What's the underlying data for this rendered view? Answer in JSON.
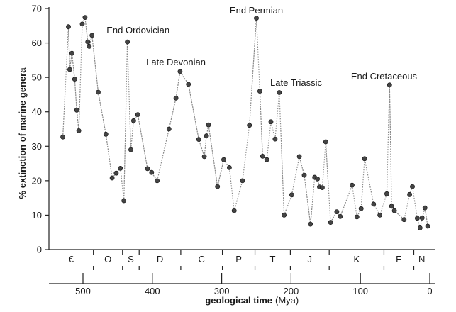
{
  "chart_data": {
    "type": "line",
    "ylabel": "% extinction of marine genera",
    "xlabel": "geological time",
    "xlabel_unit": "(Mya)",
    "ylim": [
      0,
      70
    ],
    "xlim": [
      530,
      0
    ],
    "y_ticks": [
      0,
      10,
      20,
      30,
      40,
      50,
      60,
      70
    ],
    "x_ticks": [
      500,
      400,
      300,
      200,
      100,
      0
    ],
    "grid": false,
    "series": [
      {
        "color": "#444444",
        "x": [
          529,
          521,
          519,
          516,
          512,
          509,
          506,
          501,
          497,
          493,
          491,
          487,
          478,
          467,
          458,
          452,
          446,
          441,
          436,
          431,
          427,
          421,
          407,
          401,
          393,
          376,
          366,
          360,
          348,
          333,
          325,
          322,
          319,
          306,
          297,
          289,
          282,
          270,
          260,
          250,
          245,
          241,
          235,
          229,
          223,
          217,
          210,
          199,
          188,
          181,
          172,
          166,
          162,
          159,
          155,
          150,
          143,
          134,
          129,
          112,
          105,
          99,
          94,
          81,
          72,
          62,
          58,
          55,
          51,
          37,
          29,
          25,
          18,
          14,
          11,
          7,
          3
        ],
        "y": [
          32.7,
          64.7,
          52.3,
          57.0,
          49.5,
          40.5,
          34.5,
          65.5,
          67.4,
          60.3,
          59.0,
          62.2,
          45.7,
          33.5,
          20.8,
          22.2,
          23.6,
          14.2,
          60.3,
          29.0,
          37.4,
          39.2,
          23.5,
          22.4,
          20.0,
          35.0,
          44.0,
          51.7,
          48.0,
          32.0,
          27.0,
          33.0,
          36.2,
          18.3,
          26.1,
          23.8,
          11.3,
          20.0,
          36.1,
          67.2,
          46.0,
          27.1,
          26.1,
          37.1,
          32.1,
          45.6,
          10.0,
          15.9,
          27.0,
          21.6,
          7.4,
          21.0,
          20.5,
          18.2,
          18.0,
          31.3,
          7.9,
          11.0,
          9.6,
          18.7,
          9.5,
          11.9,
          26.4,
          13.2,
          10.0,
          16.2,
          47.8,
          12.6,
          11.3,
          8.7,
          16.0,
          18.3,
          9.1,
          6.3,
          9.2,
          12.1,
          6.8
        ]
      }
    ],
    "annotations": [
      {
        "text": "End Ordovician",
        "x": 441
      },
      {
        "text": "Late Devonian",
        "x": 366
      },
      {
        "text": "End Permian",
        "x": 250
      },
      {
        "text": "Late Triassic",
        "x": 205
      },
      {
        "text": "End Cretaceous",
        "x": 66
      }
    ],
    "periods": [
      {
        "label": "€",
        "start": 541,
        "end": 485
      },
      {
        "label": "O",
        "start": 485,
        "end": 443
      },
      {
        "label": "S",
        "start": 443,
        "end": 419
      },
      {
        "label": "D",
        "start": 419,
        "end": 359
      },
      {
        "label": "C",
        "start": 359,
        "end": 299
      },
      {
        "label": "P",
        "start": 299,
        "end": 252
      },
      {
        "label": "T",
        "start": 252,
        "end": 201
      },
      {
        "label": "J",
        "start": 201,
        "end": 145
      },
      {
        "label": "K",
        "start": 145,
        "end": 66
      },
      {
        "label": "E",
        "start": 66,
        "end": 23
      },
      {
        "label": "N",
        "start": 23,
        "end": 0
      }
    ]
  }
}
